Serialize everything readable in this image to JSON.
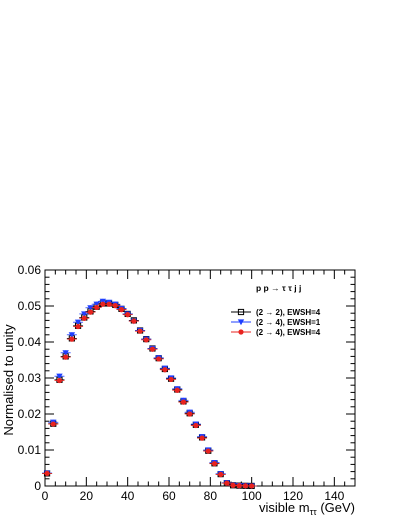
{
  "chart_data": {
    "type": "scatter",
    "title": "",
    "annotation": "p p → τ τ j j",
    "xlabel": "visible mττ (GeV)",
    "xlabel_main": "visible m",
    "xlabel_sub": "ττ",
    "xlabel_unit": " (GeV)",
    "ylabel": "Normalised to unity",
    "xlim": [
      0,
      150
    ],
    "ylim": [
      0,
      0.06
    ],
    "xticks": [
      "0",
      "20",
      "40",
      "60",
      "80",
      "100",
      "120",
      "140"
    ],
    "yticks": [
      "0",
      "0.01",
      "0.02",
      "0.03",
      "0.04",
      "0.05",
      "0.06"
    ],
    "grid": false,
    "legend_position": "right",
    "x": [
      1,
      4,
      7,
      10,
      13,
      16,
      19,
      22,
      25,
      28,
      31,
      34,
      37,
      40,
      43,
      46,
      49,
      52,
      55,
      58,
      61,
      64,
      67,
      70,
      73,
      76,
      79,
      82,
      85,
      88,
      91,
      94,
      97,
      100
    ],
    "series": [
      {
        "name": "(2 → 2), EWSH=4",
        "marker": "open-square",
        "color": "#000000",
        "values": [
          0.0035,
          0.0173,
          0.0295,
          0.036,
          0.041,
          0.0445,
          0.0468,
          0.0485,
          0.0498,
          0.0507,
          0.0507,
          0.0503,
          0.0492,
          0.0478,
          0.046,
          0.0432,
          0.0408,
          0.0382,
          0.0355,
          0.0325,
          0.0298,
          0.0268,
          0.0235,
          0.0202,
          0.017,
          0.0135,
          0.0098,
          0.0063,
          0.0033,
          0.0008,
          0.0002,
          0.0001,
          5e-05,
          2e-05
        ]
      },
      {
        "name": "(2 → 4), EWSH=1",
        "marker": "filled-triangle-down",
        "color": "#1f3fff",
        "values": [
          0.0036,
          0.0177,
          0.0305,
          0.037,
          0.042,
          0.0455,
          0.0478,
          0.0495,
          0.0505,
          0.0513,
          0.051,
          0.0505,
          0.0493,
          0.0478,
          0.0458,
          0.0432,
          0.0408,
          0.0382,
          0.0356,
          0.0327,
          0.03,
          0.027,
          0.0238,
          0.0205,
          0.0172,
          0.0137,
          0.01,
          0.0065,
          0.0034,
          0.0009,
          0.0002,
          0.0001,
          5e-05,
          2e-05
        ]
      },
      {
        "name": "(2 → 4), EWSH=4",
        "marker": "filled-circle",
        "color": "#e8231f",
        "values": [
          0.0035,
          0.0172,
          0.0293,
          0.0358,
          0.0408,
          0.0443,
          0.0466,
          0.0483,
          0.0496,
          0.0505,
          0.0505,
          0.0501,
          0.049,
          0.0476,
          0.0458,
          0.043,
          0.0406,
          0.038,
          0.0353,
          0.0323,
          0.0296,
          0.0266,
          0.0233,
          0.02,
          0.0168,
          0.0133,
          0.0097,
          0.0062,
          0.0032,
          0.0008,
          0.0002,
          0.0001,
          5e-05,
          2e-05
        ]
      }
    ]
  }
}
